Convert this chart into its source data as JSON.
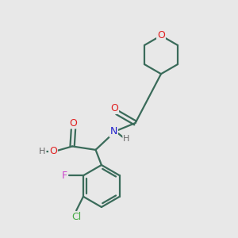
{
  "background_color": "#e8e8e8",
  "bond_color": "#3a6b5a",
  "atom_colors": {
    "O": "#e02020",
    "N": "#2020cc",
    "F": "#cc44cc",
    "Cl": "#44aa44",
    "H": "#666666",
    "C": "#3a6b5a"
  },
  "figsize": [
    3.0,
    3.0
  ],
  "dpi": 100
}
